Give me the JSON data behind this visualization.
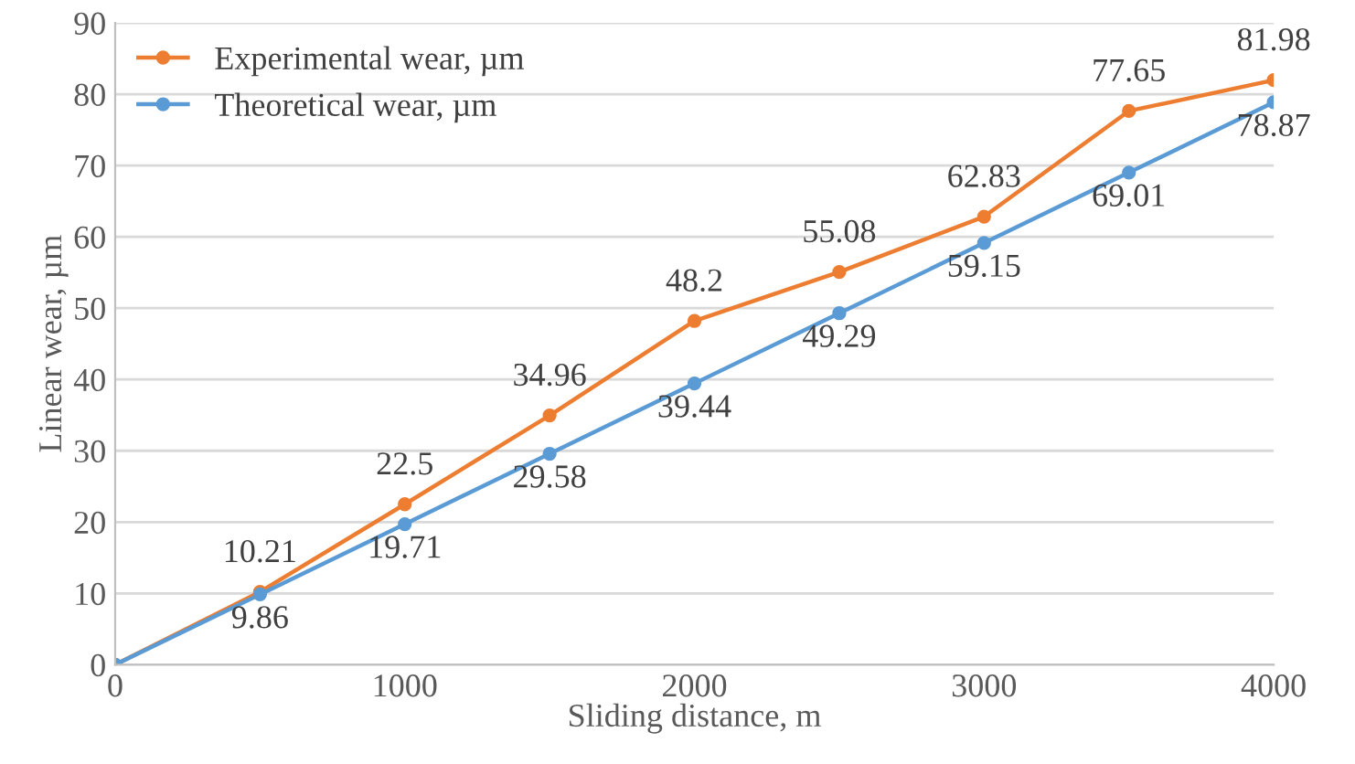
{
  "chart_data": {
    "type": "line",
    "xlabel": "Sliding distance, m",
    "ylabel": "Linear wear, µm",
    "x": [
      0,
      500,
      1000,
      1500,
      2000,
      2500,
      3000,
      3500,
      4000
    ],
    "series": [
      {
        "name": "Experimental wear, µm",
        "color": "#ed7d31",
        "values": [
          0,
          10.21,
          22.5,
          34.96,
          48.2,
          55.08,
          62.83,
          77.65,
          81.98
        ],
        "value_labels": [
          null,
          "10.21",
          "22.5",
          "34.96",
          "48.2",
          "55.08",
          "62.83",
          "77.65",
          "81.98"
        ]
      },
      {
        "name": "Theoretical wear, µm",
        "color": "#5b9bd5",
        "values": [
          0,
          9.86,
          19.71,
          29.58,
          39.44,
          49.29,
          59.15,
          69.01,
          78.87
        ],
        "value_labels": [
          null,
          "9.86",
          "19.71",
          "29.58",
          "39.44",
          "49.29",
          "59.15",
          "69.01",
          "78.87"
        ]
      }
    ],
    "xlim": [
      0,
      4000
    ],
    "xticks": [
      0,
      1000,
      2000,
      3000,
      4000
    ],
    "ylim": [
      0,
      90
    ],
    "yticks": [
      0,
      10,
      20,
      30,
      40,
      50,
      60,
      70,
      80,
      90
    ],
    "grid": "y",
    "legend": "top left",
    "marker": "circle",
    "line_style": "solid"
  }
}
